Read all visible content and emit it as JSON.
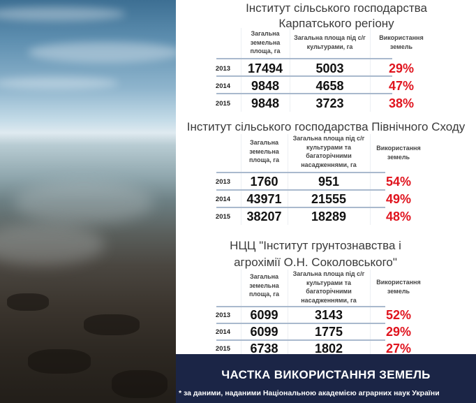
{
  "footer": {
    "title": "ЧАСТКА ВИКОРИСТАННЯ ЗЕМЕЛЬ",
    "note": "* за даними, наданими Національною академією аграрних наук України"
  },
  "colors": {
    "percent": "#e0141e",
    "band": "#1b2546",
    "row_line": "#a9b9cd"
  },
  "tables": [
    {
      "title_lines": [
        "Інститут сільського господарства",
        "Карпатського регіону"
      ],
      "headers": [
        "Загальна земельна площа, га",
        "Загальна площа під с/г культурами, га",
        "Використання земель"
      ],
      "rows": [
        {
          "year": "2013",
          "total": "17494",
          "crops": "5003",
          "usage": "29%"
        },
        {
          "year": "2014",
          "total": "9848",
          "crops": "4658",
          "usage": "47%"
        },
        {
          "year": "2015",
          "total": "9848",
          "crops": "3723",
          "usage": "38%"
        }
      ]
    },
    {
      "title_lines": [
        "Інститут сільського господарства Північного Сходу"
      ],
      "headers": [
        "Загальна земельна площа, га",
        "Загальна площа під с/г культурами та багаторічними насадженнями, га",
        "Використання земель"
      ],
      "rows": [
        {
          "year": "2013",
          "total": "1760",
          "crops": "951",
          "usage": "54%"
        },
        {
          "year": "2014",
          "total": "43971",
          "crops": "21555",
          "usage": "49%"
        },
        {
          "year": "2015",
          "total": "38207",
          "crops": "18289",
          "usage": "48%"
        }
      ]
    },
    {
      "title_lines": [
        "НЦЦ \"Інститут грунтознавства і",
        "агрохімії О.Н. Соколовського\""
      ],
      "headers": [
        "Загальна земельна площа, га",
        "Загальна площа під с/г культурами та багаторічними насадженнями, га",
        "Використання земель"
      ],
      "rows": [
        {
          "year": "2013",
          "total": "6099",
          "crops": "3143",
          "usage": "52%"
        },
        {
          "year": "2014",
          "total": "6099",
          "crops": "1775",
          "usage": "29%"
        },
        {
          "year": "2015",
          "total": "6738",
          "crops": "1802",
          "usage": "27%"
        }
      ]
    }
  ]
}
